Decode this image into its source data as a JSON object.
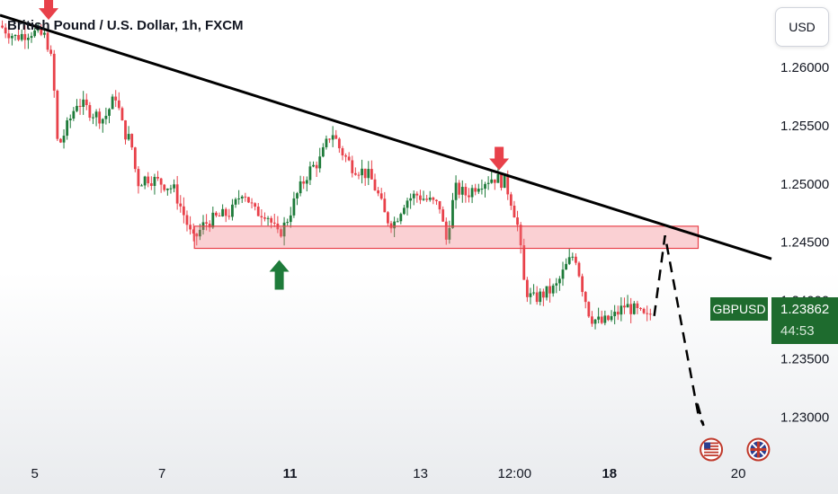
{
  "header": {
    "title": "British Pound / U.S. Dollar, 1h, FXCM",
    "currency": "USD"
  },
  "price_tag": {
    "symbol": "GBPUSD",
    "price": "1.23862",
    "countdown": "44:53"
  },
  "colors": {
    "bull": "#26a69a",
    "bull_dark": "#1e7b3a",
    "bear": "#e8414a",
    "trendline": "#000000",
    "zone_fill": "rgba(240,120,130,0.35)",
    "zone_stroke": "#e8414a",
    "arrow_down": "#e8414a",
    "arrow_up": "#1e7b3a"
  },
  "chart_data": {
    "type": "candlestick",
    "title": "British Pound / U.S. Dollar, 1h, FXCM",
    "xlabel": "",
    "ylabel": "",
    "ylim": [
      1.2268,
      1.2657
    ],
    "y_ticks": [
      "1.26000",
      "1.25500",
      "1.25000",
      "1.24500",
      "1.24000",
      "1.23500",
      "1.23000"
    ],
    "y_tick_values": [
      1.26,
      1.255,
      1.25,
      1.245,
      1.24,
      1.235,
      1.23
    ],
    "x_ticks": [
      {
        "label": "5",
        "bold": false,
        "t": 0.045
      },
      {
        "label": "7",
        "bold": false,
        "t": 0.21
      },
      {
        "label": "11",
        "bold": true,
        "t": 0.376
      },
      {
        "label": "13",
        "bold": false,
        "t": 0.545
      },
      {
        "label": "12:00",
        "bold": false,
        "t": 0.667
      },
      {
        "label": "18",
        "bold": true,
        "t": 0.79
      },
      {
        "label": "20",
        "bold": false,
        "t": 0.957
      }
    ],
    "x_range": [
      0,
      1
    ],
    "price_path": [
      [
        0.0,
        1.2635
      ],
      [
        0.02,
        1.2625
      ],
      [
        0.04,
        1.263
      ],
      [
        0.06,
        1.2625
      ],
      [
        0.068,
        1.26
      ],
      [
        0.075,
        1.253
      ],
      [
        0.085,
        1.2545
      ],
      [
        0.1,
        1.257
      ],
      [
        0.12,
        1.256
      ],
      [
        0.135,
        1.2555
      ],
      [
        0.15,
        1.2575
      ],
      [
        0.16,
        1.2545
      ],
      [
        0.17,
        1.2535
      ],
      [
        0.178,
        1.25
      ],
      [
        0.19,
        1.2505
      ],
      [
        0.21,
        1.25
      ],
      [
        0.225,
        1.2495
      ],
      [
        0.24,
        1.247
      ],
      [
        0.25,
        1.245
      ],
      [
        0.265,
        1.2465
      ],
      [
        0.28,
        1.247
      ],
      [
        0.3,
        1.2475
      ],
      [
        0.315,
        1.2495
      ],
      [
        0.33,
        1.2475
      ],
      [
        0.345,
        1.2475
      ],
      [
        0.36,
        1.2455
      ],
      [
        0.37,
        1.2465
      ],
      [
        0.385,
        1.249
      ],
      [
        0.4,
        1.251
      ],
      [
        0.415,
        1.252
      ],
      [
        0.43,
        1.2545
      ],
      [
        0.44,
        1.253
      ],
      [
        0.455,
        1.2515
      ],
      [
        0.47,
        1.251
      ],
      [
        0.48,
        1.2505
      ],
      [
        0.49,
        1.249
      ],
      [
        0.5,
        1.247
      ],
      [
        0.51,
        1.2465
      ],
      [
        0.525,
        1.2485
      ],
      [
        0.54,
        1.249
      ],
      [
        0.555,
        1.2485
      ],
      [
        0.57,
        1.248
      ],
      [
        0.578,
        1.245
      ],
      [
        0.59,
        1.2495
      ],
      [
        0.605,
        1.249
      ],
      [
        0.62,
        1.25
      ],
      [
        0.64,
        1.2505
      ],
      [
        0.655,
        1.25
      ],
      [
        0.665,
        1.248
      ],
      [
        0.672,
        1.246
      ],
      [
        0.68,
        1.241
      ],
      [
        0.69,
        1.24
      ],
      [
        0.705,
        1.2405
      ],
      [
        0.72,
        1.241
      ],
      [
        0.735,
        1.243
      ],
      [
        0.745,
        1.244
      ],
      [
        0.755,
        1.241
      ],
      [
        0.765,
        1.2385
      ],
      [
        0.78,
        1.238
      ],
      [
        0.795,
        1.2385
      ],
      [
        0.81,
        1.2395
      ],
      [
        0.825,
        1.239
      ],
      [
        0.838,
        1.2383
      ],
      [
        0.845,
        1.239
      ]
    ],
    "trendline": {
      "from": [
        0.0,
        1.2644
      ],
      "to": [
        1.0,
        1.2435
      ]
    },
    "zone": {
      "x": [
        0.252,
        0.905
      ],
      "y": [
        1.2444,
        1.2463
      ]
    },
    "projection": [
      [
        0.848,
        1.2386
      ],
      [
        0.862,
        1.2455
      ],
      [
        0.905,
        1.2302
      ],
      [
        0.912,
        1.2292
      ],
      [
        0.903,
        1.2313
      ]
    ],
    "arrows": [
      {
        "direction": "down",
        "x": 0.063,
        "price": 1.264
      },
      {
        "direction": "down",
        "x": 0.647,
        "price": 1.2511
      },
      {
        "direction": "up",
        "x": 0.362,
        "price": 1.2434
      }
    ],
    "events": [
      {
        "flag": "us-flag-icon",
        "x": 0.922,
        "price": 1.2283
      },
      {
        "flag": "uk-flag-icon",
        "x": 0.983,
        "price": 1.2283
      }
    ]
  }
}
